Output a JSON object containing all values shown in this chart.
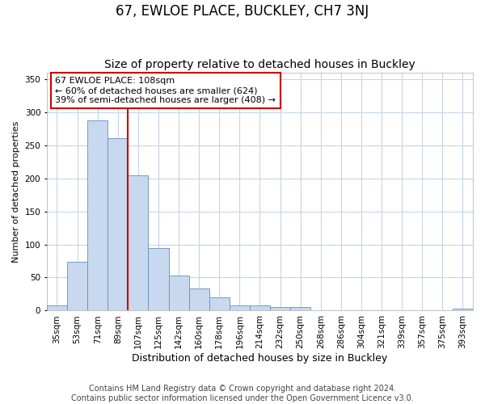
{
  "title": "67, EWLOE PLACE, BUCKLEY, CH7 3NJ",
  "subtitle": "Size of property relative to detached houses in Buckley",
  "xlabel": "Distribution of detached houses by size in Buckley",
  "ylabel": "Number of detached properties",
  "categories": [
    "35sqm",
    "53sqm",
    "71sqm",
    "89sqm",
    "107sqm",
    "125sqm",
    "142sqm",
    "160sqm",
    "178sqm",
    "196sqm",
    "214sqm",
    "232sqm",
    "250sqm",
    "268sqm",
    "286sqm",
    "304sqm",
    "321sqm",
    "339sqm",
    "357sqm",
    "375sqm",
    "393sqm"
  ],
  "values": [
    8,
    74,
    288,
    260,
    204,
    95,
    53,
    33,
    20,
    8,
    8,
    5,
    5,
    0,
    0,
    0,
    0,
    0,
    0,
    0,
    3
  ],
  "bar_color": "#c8d8ee",
  "bar_edge_color": "#6090c0",
  "vline_x": 3.5,
  "vline_color": "#cc0000",
  "annotation_text": "67 EWLOE PLACE: 108sqm\n← 60% of detached houses are smaller (624)\n39% of semi-detached houses are larger (408) →",
  "annotation_box_color": "#ffffff",
  "annotation_box_edge": "#cc0000",
  "ylim": [
    0,
    360
  ],
  "yticks": [
    0,
    50,
    100,
    150,
    200,
    250,
    300,
    350
  ],
  "footer": "Contains HM Land Registry data © Crown copyright and database right 2024.\nContains public sector information licensed under the Open Government Licence v3.0.",
  "fig_bg_color": "#ffffff",
  "plot_bg_color": "#ffffff",
  "grid_color": "#c5d5e8",
  "title_fontsize": 12,
  "subtitle_fontsize": 10,
  "xlabel_fontsize": 9,
  "ylabel_fontsize": 8,
  "tick_fontsize": 7.5,
  "footer_fontsize": 7,
  "annot_fontsize": 8
}
